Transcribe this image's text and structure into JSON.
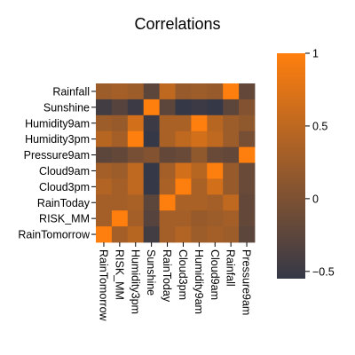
{
  "chart_data": {
    "type": "heatmap",
    "title": "Correlations",
    "rows": [
      "Rainfall",
      "Sunshine",
      "Humidity9am",
      "Humidity3pm",
      "Pressure9am",
      "Cloud9am",
      "Cloud3pm",
      "RainToday",
      "RISK_MM",
      "RainTomorrow"
    ],
    "columns": [
      "RainTomorrow",
      "RISK_MM",
      "Humidity3pm",
      "Sunshine",
      "RainToday",
      "Cloud3pm",
      "Humidity9am",
      "Cloud9am",
      "Rainfall",
      "Pressure9am"
    ],
    "values": [
      [
        0.25,
        0.3,
        0.25,
        -0.25,
        0.5,
        0.2,
        0.25,
        0.2,
        1.0,
        -0.2
      ],
      [
        -0.45,
        -0.3,
        -0.5,
        1.0,
        -0.25,
        -0.65,
        -0.5,
        -0.7,
        -0.25,
        0.05
      ],
      [
        0.25,
        0.2,
        0.65,
        -0.5,
        0.35,
        0.35,
        1.0,
        0.45,
        0.25,
        0.15
      ],
      [
        0.45,
        0.3,
        1.0,
        -0.6,
        0.35,
        0.5,
        0.65,
        0.5,
        0.25,
        -0.05
      ],
      [
        -0.25,
        -0.2,
        -0.05,
        0.05,
        -0.2,
        -0.15,
        0.15,
        -0.15,
        -0.2,
        1.0
      ],
      [
        0.3,
        0.25,
        0.5,
        -0.7,
        0.3,
        0.65,
        0.45,
        1.0,
        0.2,
        -0.15
      ],
      [
        0.4,
        0.3,
        0.5,
        -0.65,
        0.35,
        1.0,
        0.35,
        0.65,
        0.2,
        -0.15
      ],
      [
        0.3,
        0.3,
        0.35,
        -0.25,
        1.0,
        0.35,
        0.35,
        0.3,
        0.5,
        -0.2
      ],
      [
        0.3,
        1.0,
        0.3,
        -0.3,
        0.3,
        0.3,
        0.2,
        0.25,
        0.3,
        -0.2
      ],
      [
        1.0,
        0.3,
        0.45,
        -0.45,
        0.3,
        0.4,
        0.25,
        0.3,
        0.25,
        -0.25
      ]
    ],
    "colorbar": {
      "min": -0.55,
      "max": 1.0,
      "ticks": [
        -0.5,
        0,
        0.5,
        1
      ],
      "tick_labels": [
        "−0.5",
        "0",
        "0.5",
        "1"
      ]
    },
    "colors": {
      "low": "#353847",
      "high": "#ff7f0e"
    }
  }
}
